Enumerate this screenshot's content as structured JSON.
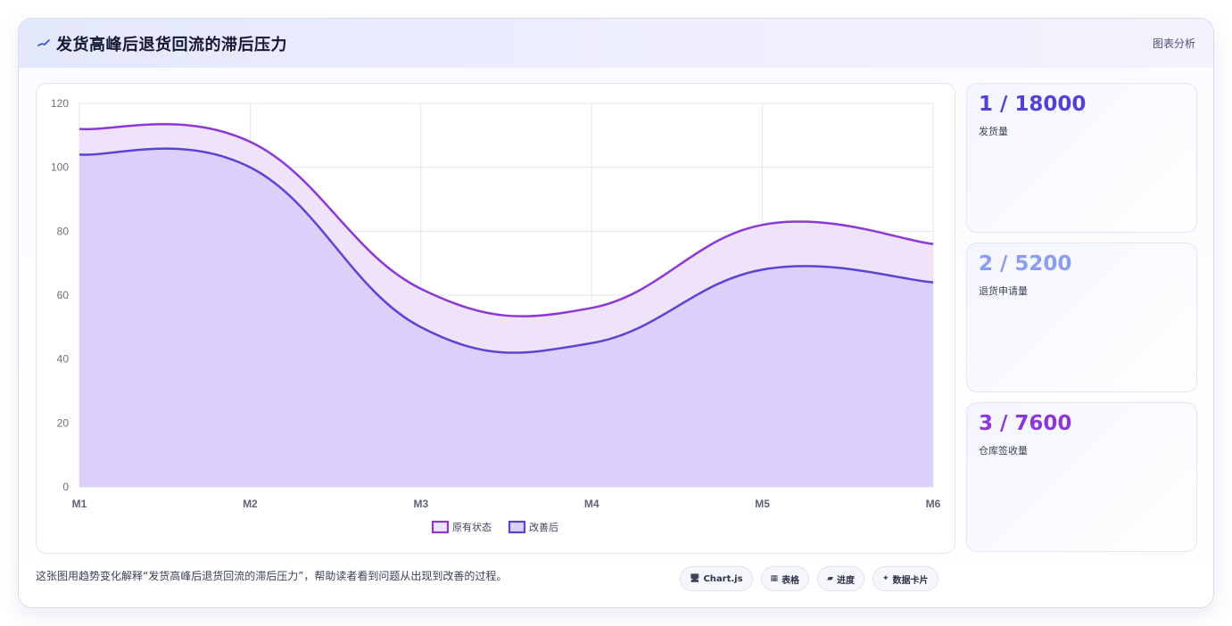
{
  "header": {
    "title": "发货高峰后退货回流的滞后压力",
    "right_label": "图表分析",
    "icon": "trend-line-icon"
  },
  "chart_data": {
    "type": "area",
    "categories": [
      "M1",
      "M2",
      "M3",
      "M4",
      "M5",
      "M6"
    ],
    "series": [
      {
        "name": "原有状态",
        "values": [
          112,
          108,
          62,
          56,
          82,
          76
        ],
        "color": "#8e37d7",
        "fill": "#efe3fa"
      },
      {
        "name": "改善后",
        "values": [
          104,
          100,
          50,
          45,
          68,
          64
        ],
        "color": "#5a45d3",
        "fill": "#dccffa"
      }
    ],
    "ylim": [
      0,
      120
    ],
    "yticks": [
      0,
      20,
      40,
      60,
      80,
      100,
      120
    ],
    "grid": true,
    "legend": "bottom"
  },
  "stats": [
    {
      "value": "1 / 18000",
      "label": "发货量",
      "color": "#4f43d4"
    },
    {
      "value": "2 / 5200",
      "label": "退货申请量",
      "color": "#8a9df0"
    },
    {
      "value": "3 / 7600",
      "label": "仓库签收量",
      "color": "#8e37d7"
    }
  ],
  "footer": {
    "description": "这张图用趋势变化解释“发货高峰后退货回流的滞后压力”，帮助读者看到问题从出现到改善的过程。",
    "chips": [
      {
        "icon": "monitor-icon",
        "label": "Chart.js"
      },
      {
        "icon": "table-icon",
        "label": "表格"
      },
      {
        "icon": "folder-icon",
        "label": "进度"
      },
      {
        "icon": "sparkle-icon",
        "label": "数据卡片"
      }
    ]
  }
}
